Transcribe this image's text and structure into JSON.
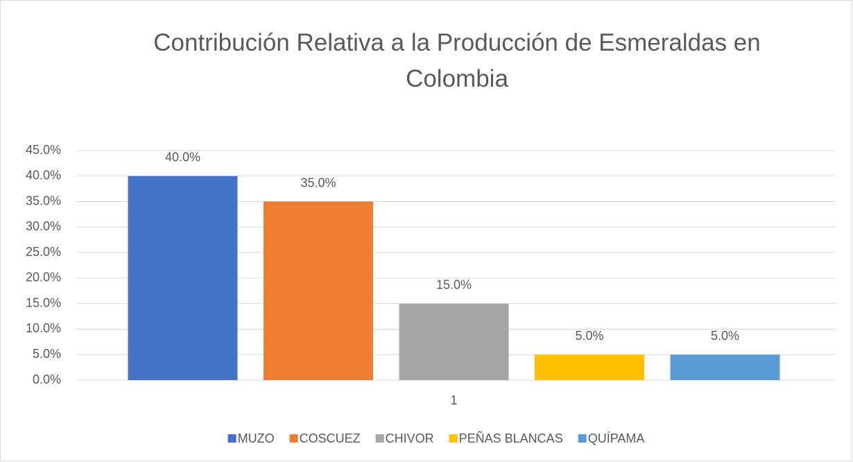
{
  "chart_data": {
    "type": "bar",
    "title": "Contribución Relativa a la Producción de Esmeraldas en Colombia",
    "categories": [
      "1"
    ],
    "series": [
      {
        "name": "MUZO",
        "color": "#4472c4",
        "values": [
          40
        ],
        "value_labels": [
          "40.0%"
        ]
      },
      {
        "name": "COSCUEZ",
        "color": "#ed7d31",
        "values": [
          35
        ],
        "value_labels": [
          "35.0%"
        ]
      },
      {
        "name": "CHIVOR",
        "color": "#a5a5a5",
        "values": [
          15
        ],
        "value_labels": [
          "15.0%"
        ]
      },
      {
        "name": "PEÑAS BLANCAS",
        "color": "#ffc000",
        "values": [
          5
        ],
        "value_labels": [
          "5.0%"
        ]
      },
      {
        "name": "QUÍPAMA",
        "color": "#5b9bd5",
        "values": [
          5
        ],
        "value_labels": [
          "5.0%"
        ]
      }
    ],
    "ylim": [
      0,
      45
    ],
    "yticks": [
      {
        "value": 0,
        "label": "0.0%"
      },
      {
        "value": 5,
        "label": "5.0%"
      },
      {
        "value": 10,
        "label": "10.0%"
      },
      {
        "value": 15,
        "label": "15.0%"
      },
      {
        "value": 20,
        "label": "20.0%"
      },
      {
        "value": 25,
        "label": "25.0%"
      },
      {
        "value": 30,
        "label": "30.0%"
      },
      {
        "value": 35,
        "label": "35.0%"
      },
      {
        "value": 40,
        "label": "40.0%"
      },
      {
        "value": 45,
        "label": "45.0%"
      }
    ],
    "grid": true,
    "legend": "bottom"
  }
}
